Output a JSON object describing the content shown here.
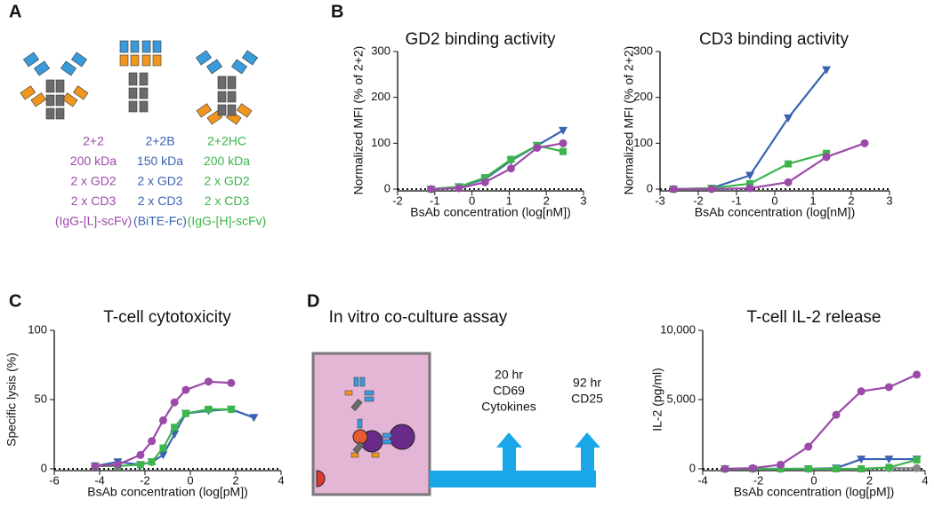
{
  "panels": [
    "A",
    "B",
    "C",
    "D"
  ],
  "constructs": [
    {
      "color": "#9b4aa8",
      "lines": [
        "2+2",
        "200 kDa",
        "2 x GD2",
        "2 x CD3",
        "(IgG-[L]-scFv)"
      ]
    },
    {
      "color": "#3a62b0",
      "lines": [
        "2+2B",
        "150 kDa",
        "2 x GD2",
        "2 x CD3",
        "(BiTE-Fc)"
      ]
    },
    {
      "color": "#3cb54a",
      "lines": [
        "2+2HC",
        "200 kDa",
        "2 x GD2",
        "2 x CD3",
        "(IgG-[H]-scFv)"
      ]
    }
  ],
  "assay": {
    "title": "In vitro co-culture assay",
    "step1": [
      "20 hr",
      "CD69",
      "Cytokines"
    ],
    "step2": [
      "92 hr",
      "CD25"
    ]
  },
  "chart_data": [
    {
      "type": "line",
      "title": "GD2 binding activity",
      "xlabel": "BsAb concentration (log[nM])",
      "ylabel": "Normalized MFI (% of 2+2)",
      "xlim": [
        -2,
        3
      ],
      "xticks": [
        -2,
        -1,
        0,
        1,
        2,
        3
      ],
      "ylim": [
        0,
        300
      ],
      "yticks": [
        0,
        100,
        200,
        300
      ],
      "zero_line": true,
      "series": [
        {
          "color": "#3a62b0",
          "marker": "triangle",
          "x": [
            -1.1,
            -0.35,
            0.35,
            1.05,
            1.75,
            2.45
          ],
          "values": [
            0,
            5,
            22,
            62,
            95,
            128
          ]
        },
        {
          "color": "#3cb54a",
          "marker": "square",
          "x": [
            -1.1,
            -0.35,
            0.35,
            1.05,
            1.75,
            2.45
          ],
          "values": [
            0,
            5,
            25,
            65,
            95,
            82
          ]
        },
        {
          "color": "#9b4aa8",
          "marker": "circle",
          "x": [
            -1.1,
            -0.35,
            0.35,
            1.05,
            1.75,
            2.45
          ],
          "values": [
            0,
            2,
            15,
            45,
            90,
            100
          ]
        }
      ]
    },
    {
      "type": "line",
      "title": "CD3 binding activity",
      "xlabel": "BsAb concentration (log[nM])",
      "ylabel": "Normalized MFI (% of 2+2)",
      "xlim": [
        -3,
        3
      ],
      "xticks": [
        -3,
        -2,
        -1,
        0,
        1,
        2,
        3
      ],
      "ylim": [
        0,
        300
      ],
      "yticks": [
        0,
        100,
        200,
        300
      ],
      "zero_line": true,
      "series": [
        {
          "color": "#3a62b0",
          "marker": "triangle",
          "x": [
            -2.65,
            -1.65,
            -0.65,
            0.35,
            1.35
          ],
          "values": [
            0,
            2,
            30,
            155,
            260
          ]
        },
        {
          "color": "#3cb54a",
          "marker": "square",
          "x": [
            -2.65,
            -1.65,
            -0.65,
            0.35,
            1.35
          ],
          "values": [
            0,
            2,
            12,
            55,
            78
          ]
        },
        {
          "color": "#9b4aa8",
          "marker": "circle",
          "x": [
            -2.65,
            -1.65,
            -0.65,
            0.35,
            1.35,
            2.35
          ],
          "values": [
            0,
            0,
            2,
            15,
            70,
            100
          ]
        }
      ]
    },
    {
      "type": "line",
      "title": "T-cell cytotoxicity",
      "xlabel": "BsAb concentration (log[pM])",
      "ylabel": "Specific lysis (%)",
      "xlim": [
        -6,
        4
      ],
      "xticks": [
        -6,
        -4,
        -2,
        0,
        2,
        4
      ],
      "ylim": [
        0,
        100
      ],
      "yticks": [
        0,
        50,
        100
      ],
      "zero_line": true,
      "series": [
        {
          "color": "#3a62b0",
          "marker": "triangle",
          "x": [
            -4.2,
            -3.2,
            -2.2,
            -1.7,
            -1.2,
            -0.7,
            -0.2,
            0.8,
            1.8,
            2.8
          ],
          "values": [
            2,
            5,
            3,
            5,
            10,
            25,
            40,
            42,
            43,
            37
          ]
        },
        {
          "color": "#3cb54a",
          "marker": "square",
          "x": [
            -4.2,
            -3.2,
            -2.2,
            -1.7,
            -1.2,
            -0.7,
            -0.2,
            0.8,
            1.8
          ],
          "values": [
            2,
            2,
            3,
            5,
            15,
            30,
            40,
            43,
            43
          ]
        },
        {
          "color": "#9b4aa8",
          "marker": "circle",
          "x": [
            -4.2,
            -3.2,
            -2.2,
            -1.7,
            -1.2,
            -0.7,
            -0.2,
            0.8,
            1.8
          ],
          "values": [
            2,
            3,
            10,
            20,
            35,
            48,
            57,
            63,
            62
          ]
        }
      ]
    },
    {
      "type": "line",
      "title": "T-cell IL-2 release",
      "xlabel": "BsAb concentration (log[pM])",
      "ylabel": "IL-2 (pg/ml)",
      "xlim": [
        -4,
        4
      ],
      "xticks": [
        -4,
        -2,
        0,
        2,
        4
      ],
      "ylim": [
        0,
        10000
      ],
      "yticks": [
        0,
        {
          "value": 5000,
          "label": "5,000"
        },
        {
          "value": 10000,
          "label": "10,000"
        }
      ],
      "zero_line": true,
      "series": [
        {
          "color": "#888888",
          "marker": "circle",
          "x": [
            2.7,
            3.7
          ],
          "values": [
            50,
            50
          ]
        },
        {
          "color": "#3a62b0",
          "marker": "triangle",
          "x": [
            -3.2,
            -2.2,
            -1.2,
            -0.2,
            0.8,
            1.7,
            2.7,
            3.7
          ],
          "values": [
            0,
            0,
            0,
            0,
            50,
            700,
            700,
            700
          ]
        },
        {
          "color": "#3cb54a",
          "marker": "square",
          "x": [
            -3.2,
            -2.2,
            -1.2,
            -0.2,
            0.8,
            1.7,
            2.7,
            3.7
          ],
          "values": [
            0,
            0,
            0,
            0,
            0,
            0,
            100,
            650
          ]
        },
        {
          "color": "#9b4aa8",
          "marker": "circle",
          "x": [
            -3.2,
            -2.2,
            -1.2,
            -0.2,
            0.8,
            1.7,
            2.7,
            3.7
          ],
          "values": [
            0,
            50,
            300,
            1600,
            3900,
            5600,
            5900,
            6800
          ]
        }
      ]
    }
  ]
}
